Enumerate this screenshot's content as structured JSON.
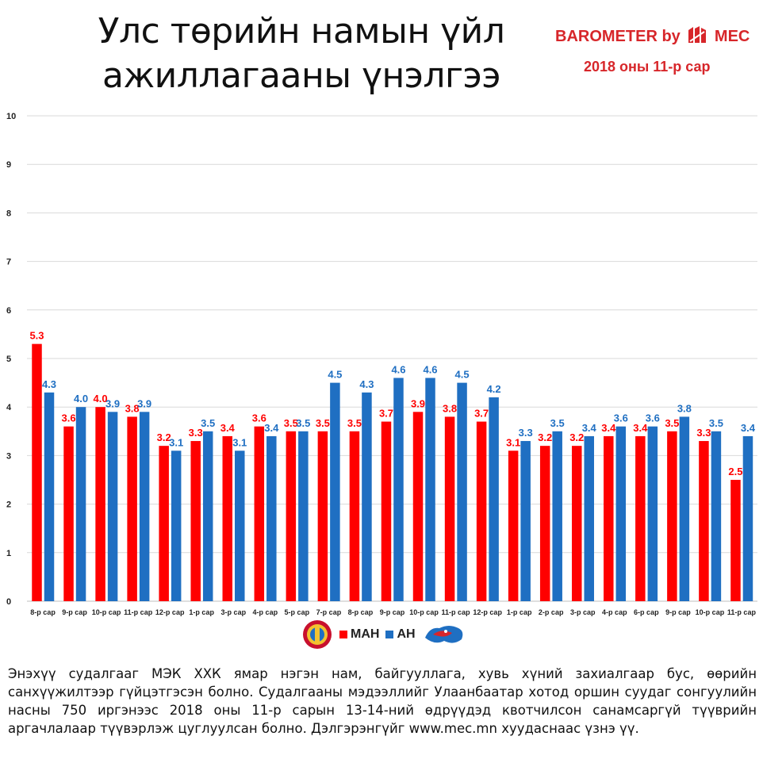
{
  "header": {
    "title_line1": "Улс төрийн намын үйл",
    "title_line2": "ажиллагааны үнэлгээ",
    "brand_prefix": "BAROMETER by",
    "brand_suffix": "MEC",
    "date": "2018 оны 11-р сар"
  },
  "colors": {
    "series1": "#ff0000",
    "series2": "#1f6fc2",
    "brand": "#d7262a"
  },
  "chart_data": {
    "type": "bar",
    "categories": [
      "8-р сар",
      "9-р сар",
      "10-р сар",
      "11-р сар",
      "12-р сар",
      "1-р сар",
      "3-р сар",
      "4-р сар",
      "5-р сар",
      "7-р сар",
      "8-р сар",
      "9-р сар",
      "10-р сар",
      "11-р сар",
      "12-р сар",
      "1-р сар",
      "2-р сар",
      "3-р сар",
      "4-р сар",
      "6-р сар",
      "9-р сар",
      "10-р сар",
      "11-р сар"
    ],
    "series": [
      {
        "name": "МАН",
        "color": "#ff0000",
        "values": [
          5.3,
          3.6,
          4.0,
          3.8,
          3.2,
          3.3,
          3.4,
          3.6,
          3.5,
          3.5,
          3.5,
          3.7,
          3.9,
          3.8,
          3.7,
          3.1,
          3.2,
          3.2,
          3.4,
          3.4,
          3.5,
          3.3,
          2.5
        ]
      },
      {
        "name": "АН",
        "color": "#1f6fc2",
        "values": [
          4.3,
          4.0,
          3.9,
          3.9,
          3.1,
          3.5,
          3.1,
          3.4,
          3.5,
          4.5,
          4.3,
          4.6,
          4.6,
          4.5,
          4.2,
          3.3,
          3.5,
          3.4,
          3.6,
          3.6,
          3.8,
          3.5,
          3.4
        ]
      }
    ],
    "ylim": [
      0,
      10
    ],
    "yticks": [
      0,
      1,
      2,
      3,
      4,
      5,
      6,
      7,
      8,
      9,
      10
    ],
    "grid": true,
    "legend_position": "bottom-center"
  },
  "footnote": "Энэхүү судалгааг МЭК ХХК ямар нэгэн нам, байгууллага, хувь хүний захиалгаар бус, өөрийн санхүүжилтээр гүйцэтгэсэн болно. Судалгааны мэдээллийг Улаанбаатар хотод оршин суудаг сонгуулийн насны 750 иргэнээс 2018 оны 11-р сарын 13-14-ний өдрүүдэд квотчилсон санамсаргүй түүврийн аргачлалаар түүвэрлэж цуглуулсан болно. Дэлгэрэнгүйг www.mec.mn хуудаснаас үзнэ үү."
}
